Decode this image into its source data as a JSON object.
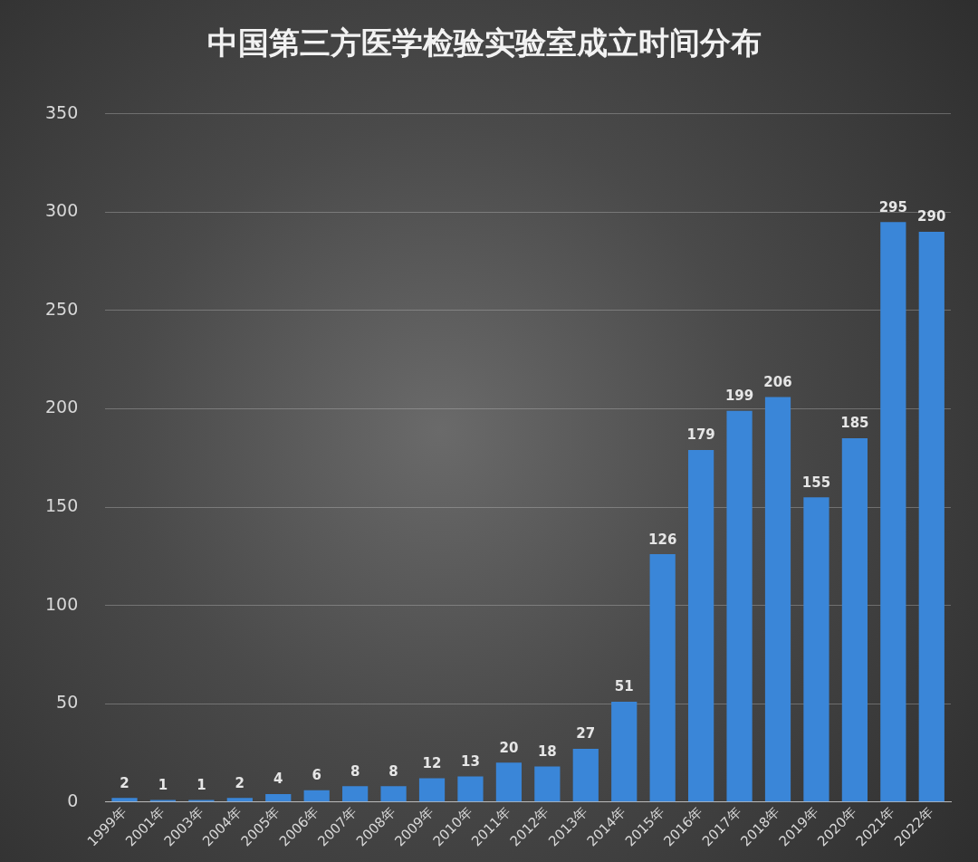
{
  "chart_data": {
    "type": "bar",
    "title": "中国第三方医学检验实验室成立时间分布",
    "categories": [
      "1999年",
      "2001年",
      "2003年",
      "2004年",
      "2005年",
      "2006年",
      "2007年",
      "2008年",
      "2009年",
      "2010年",
      "2011年",
      "2012年",
      "2013年",
      "2014年",
      "2015年",
      "2016年",
      "2017年",
      "2018年",
      "2019年",
      "2020年",
      "2021年",
      "2022年"
    ],
    "values": [
      2,
      1,
      1,
      2,
      4,
      6,
      8,
      8,
      12,
      13,
      20,
      18,
      27,
      51,
      126,
      179,
      199,
      206,
      155,
      185,
      295,
      290
    ],
    "color": "#3a86d8",
    "ylim": [
      0,
      350
    ],
    "yticks": [
      0,
      50,
      100,
      150,
      200,
      250,
      300,
      350
    ],
    "grid": "y",
    "legend": false,
    "data_labels": true
  }
}
